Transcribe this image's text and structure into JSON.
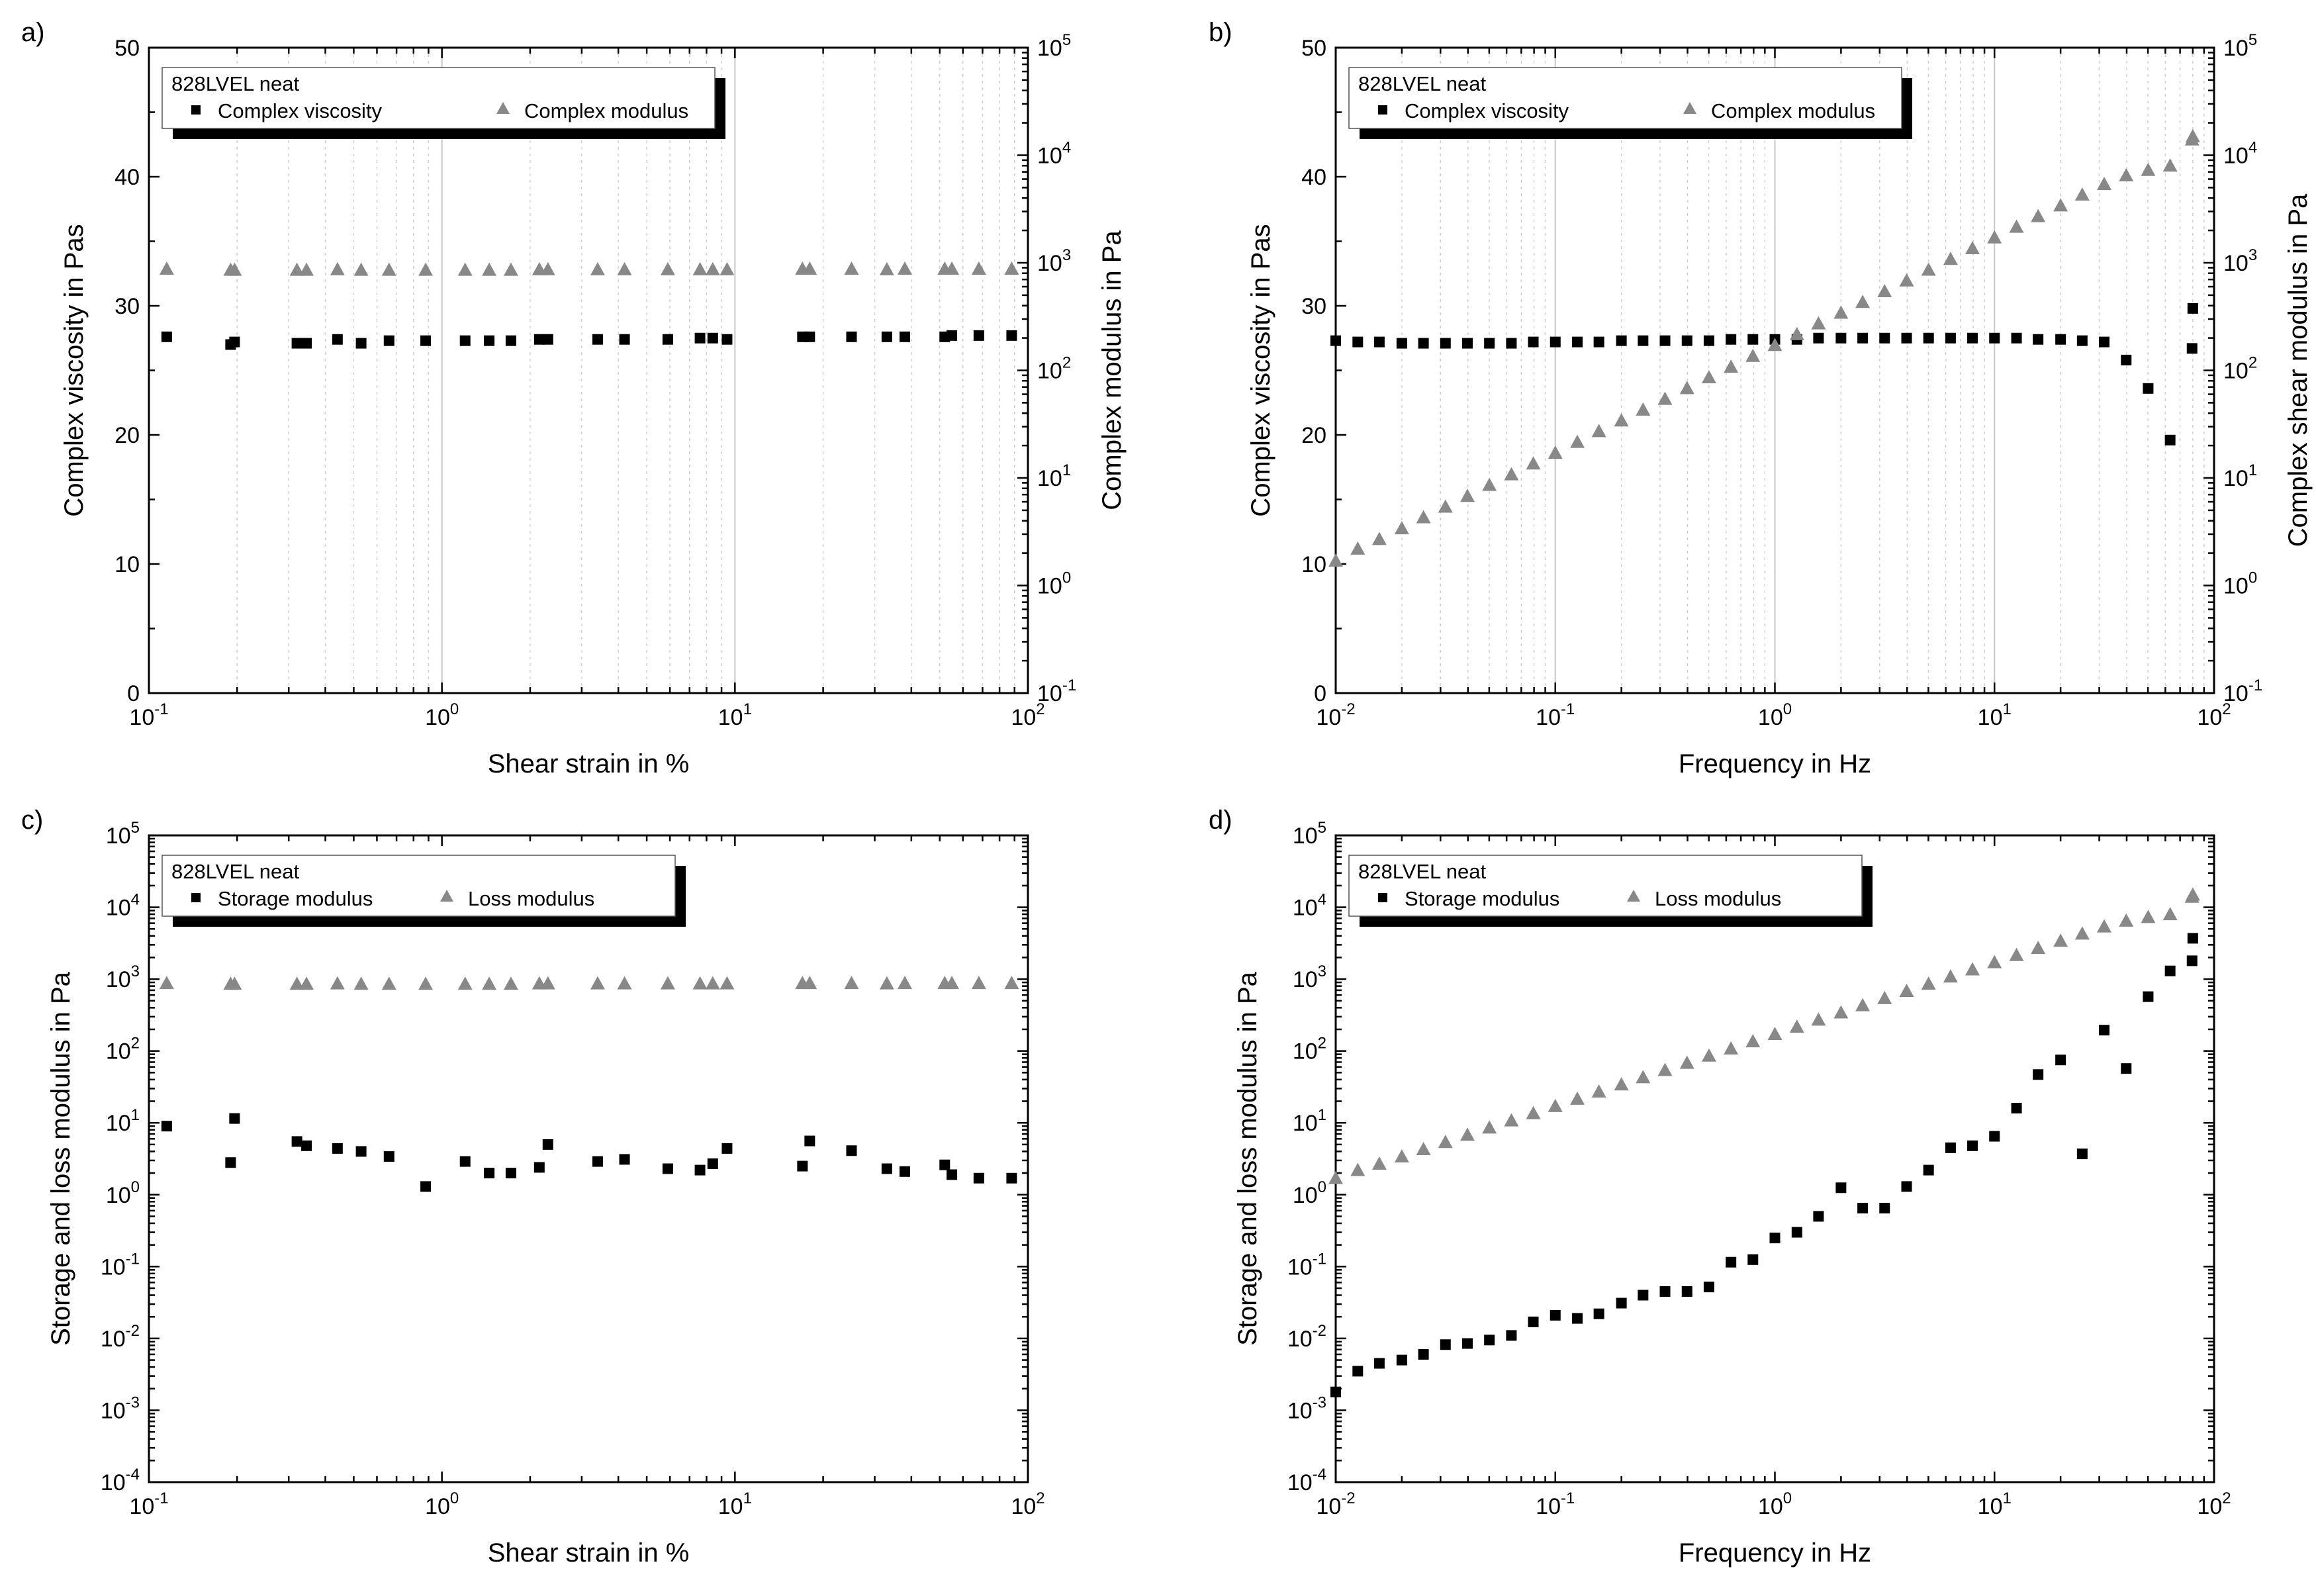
{
  "chart_data": [
    {
      "panel_label": "a)",
      "type": "scatter",
      "xlabel": "Shear strain in %",
      "ylabel_left": "Complex viscosity in Pas",
      "ylabel_right": "Complex modulus in Pa",
      "xscale": "log",
      "xlim": [
        0.1,
        100
      ],
      "ylim_left": [
        0,
        50
      ],
      "yticks_left": [
        0,
        10,
        20,
        30,
        40,
        50
      ],
      "yscale_right": "log",
      "ylim_right": [
        0.1,
        100000
      ],
      "grid": "vertical dotted minor + solid major",
      "legend": {
        "title": "828LVEL neat",
        "placement": "top-left"
      },
      "series": [
        {
          "name": "Complex viscosity",
          "marker": "square",
          "color": "#000000",
          "axis": "left",
          "x": [
            0.115,
            0.19,
            0.196,
            0.32,
            0.345,
            0.44,
            0.53,
            0.66,
            0.88,
            1.2,
            1.45,
            1.72,
            2.15,
            2.3,
            3.4,
            4.2,
            5.9,
            7.6,
            8.4,
            9.4,
            17,
            18,
            25,
            33,
            38,
            52,
            55,
            68,
            88
          ],
          "values": [
            27.6,
            27.0,
            27.2,
            27.1,
            27.1,
            27.4,
            27.1,
            27.3,
            27.3,
            27.3,
            27.3,
            27.3,
            27.4,
            27.4,
            27.4,
            27.4,
            27.4,
            27.5,
            27.5,
            27.4,
            27.6,
            27.6,
            27.6,
            27.6,
            27.6,
            27.6,
            27.7,
            27.7,
            27.7
          ]
        },
        {
          "name": "Complex modulus",
          "marker": "triangle",
          "color": "#888888",
          "axis": "right",
          "x": [
            0.115,
            0.19,
            0.196,
            0.32,
            0.345,
            0.44,
            0.53,
            0.66,
            0.88,
            1.2,
            1.45,
            1.72,
            2.15,
            2.3,
            3.4,
            4.2,
            5.9,
            7.6,
            8.4,
            9.4,
            17,
            18,
            25,
            33,
            38,
            52,
            55,
            68,
            88
          ],
          "values": [
            880,
            860,
            860,
            860,
            860,
            870,
            860,
            860,
            860,
            860,
            860,
            860,
            870,
            870,
            870,
            870,
            870,
            870,
            870,
            870,
            880,
            880,
            880,
            870,
            880,
            880,
            880,
            880,
            880
          ]
        }
      ]
    },
    {
      "panel_label": "b)",
      "type": "scatter",
      "xlabel": "Frequency in Hz",
      "ylabel_left": "Complex viscosity in Pas",
      "ylabel_right": "Complex shear modulus in Pa",
      "xscale": "log",
      "xlim": [
        0.01,
        100
      ],
      "ylim_left": [
        0,
        50
      ],
      "yticks_left": [
        0,
        10,
        20,
        30,
        40,
        50
      ],
      "yscale_right": "log",
      "ylim_right": [
        0.1,
        100000
      ],
      "grid": "vertical dotted minor + solid major",
      "legend": {
        "title": "828LVEL neat",
        "placement": "top-left"
      },
      "series": [
        {
          "name": "Complex viscosity",
          "marker": "square",
          "color": "#000000",
          "axis": "left",
          "x": [
            0.01,
            0.0126,
            0.0158,
            0.02,
            0.0251,
            0.0316,
            0.0398,
            0.0501,
            0.0631,
            0.0794,
            0.1,
            0.126,
            0.158,
            0.2,
            0.251,
            0.316,
            0.398,
            0.501,
            0.631,
            0.794,
            1.0,
            1.26,
            1.58,
            2.0,
            2.51,
            3.16,
            3.98,
            5.01,
            6.31,
            7.94,
            10,
            12.6,
            15.8,
            20,
            25.1,
            31.6,
            39.8,
            50.1,
            63.1,
            79.4,
            80
          ],
          "values": [
            27.3,
            27.2,
            27.2,
            27.1,
            27.1,
            27.1,
            27.1,
            27.1,
            27.1,
            27.2,
            27.2,
            27.2,
            27.2,
            27.3,
            27.3,
            27.3,
            27.3,
            27.3,
            27.4,
            27.4,
            27.4,
            27.4,
            27.5,
            27.5,
            27.5,
            27.5,
            27.5,
            27.5,
            27.5,
            27.5,
            27.5,
            27.5,
            27.4,
            27.4,
            27.3,
            27.2,
            25.8,
            23.6,
            19.6,
            26.7,
            29.8
          ]
        },
        {
          "name": "Complex modulus",
          "marker": "triangle",
          "color": "#888888",
          "axis": "right",
          "x": [
            0.01,
            0.0126,
            0.0158,
            0.02,
            0.0251,
            0.0316,
            0.0398,
            0.0501,
            0.0631,
            0.0794,
            0.1,
            0.126,
            0.158,
            0.2,
            0.251,
            0.316,
            0.398,
            0.501,
            0.631,
            0.794,
            1.0,
            1.26,
            1.58,
            2.0,
            2.51,
            3.16,
            3.98,
            5.01,
            6.31,
            7.94,
            10,
            12.6,
            15.8,
            20,
            25.1,
            31.6,
            39.8,
            50.1,
            63.1,
            79.4,
            80
          ],
          "values": [
            1.7,
            2.2,
            2.7,
            3.4,
            4.3,
            5.4,
            6.8,
            8.6,
            10.8,
            13.6,
            17.1,
            21.6,
            27.2,
            34.2,
            43.1,
            54.3,
            68.3,
            86.1,
            108,
            136,
            172,
            217,
            273,
            343,
            432,
            544,
            684,
            861,
            1084,
            1365,
            1718,
            2160,
            2710,
            3410,
            4300,
            5400,
            6500,
            7300,
            8000,
            14000,
            15000
          ]
        }
      ]
    },
    {
      "panel_label": "c)",
      "type": "scatter",
      "xlabel": "Shear strain in %",
      "ylabel": "Storage and loss modulus in Pa",
      "xscale": "log",
      "xlim": [
        0.1,
        100
      ],
      "yscale": "log",
      "ylim": [
        0.0001,
        100000
      ],
      "legend": {
        "title": "828LVEL neat",
        "placement": "top-left"
      },
      "series": [
        {
          "name": "Storage modulus",
          "marker": "square",
          "color": "#000000",
          "x": [
            0.115,
            0.19,
            0.196,
            0.32,
            0.345,
            0.44,
            0.53,
            0.66,
            0.88,
            1.2,
            1.45,
            1.72,
            2.15,
            2.3,
            3.4,
            4.2,
            5.9,
            7.6,
            8.4,
            9.4,
            17,
            18,
            25,
            33,
            38,
            52,
            55,
            68,
            88
          ],
          "values": [
            9.0,
            2.8,
            11.5,
            5.5,
            4.8,
            4.4,
            4.0,
            3.4,
            1.3,
            2.9,
            2.0,
            2.0,
            2.4,
            5.0,
            2.9,
            3.1,
            2.3,
            2.2,
            2.7,
            4.4,
            2.5,
            5.6,
            4.1,
            2.3,
            2.1,
            2.6,
            1.9,
            1.7,
            1.7
          ]
        },
        {
          "name": "Loss modulus",
          "marker": "triangle",
          "color": "#888888",
          "x": [
            0.115,
            0.19,
            0.196,
            0.32,
            0.345,
            0.44,
            0.53,
            0.66,
            0.88,
            1.2,
            1.45,
            1.72,
            2.15,
            2.3,
            3.4,
            4.2,
            5.9,
            7.6,
            8.4,
            9.4,
            17,
            18,
            25,
            33,
            38,
            52,
            55,
            68,
            88
          ],
          "values": [
            880,
            860,
            860,
            860,
            860,
            870,
            860,
            860,
            860,
            860,
            860,
            860,
            870,
            870,
            870,
            870,
            870,
            870,
            870,
            870,
            880,
            880,
            880,
            870,
            880,
            880,
            880,
            880,
            880
          ]
        }
      ]
    },
    {
      "panel_label": "d)",
      "type": "scatter",
      "xlabel": "Frequency in Hz",
      "ylabel": "Storage and loss modulus in Pa",
      "xscale": "log",
      "xlim": [
        0.01,
        100
      ],
      "yscale": "log",
      "ylim": [
        0.0001,
        100000
      ],
      "legend": {
        "title": "828LVEL neat",
        "placement": "top-left"
      },
      "series": [
        {
          "name": "Storage modulus",
          "marker": "square",
          "color": "#000000",
          "x": [
            0.01,
            0.0126,
            0.0158,
            0.02,
            0.0251,
            0.0316,
            0.0398,
            0.0501,
            0.0631,
            0.0794,
            0.1,
            0.126,
            0.158,
            0.2,
            0.251,
            0.316,
            0.398,
            0.501,
            0.631,
            0.794,
            1.0,
            1.26,
            1.58,
            2.0,
            2.51,
            3.16,
            3.98,
            5.01,
            6.31,
            7.94,
            10,
            12.6,
            15.8,
            20,
            25.1,
            31.6,
            39.8,
            50.1,
            63.1,
            79.4,
            80
          ],
          "values": [
            0.0018,
            0.0035,
            0.0045,
            0.005,
            0.006,
            0.0082,
            0.0085,
            0.0095,
            0.011,
            0.017,
            0.021,
            0.019,
            0.022,
            0.031,
            0.04,
            0.045,
            0.045,
            0.052,
            0.115,
            0.125,
            0.25,
            0.3,
            0.5,
            1.25,
            0.65,
            0.65,
            1.3,
            2.2,
            4.5,
            4.8,
            6.5,
            16,
            47,
            75,
            3.7,
            195,
            57,
            570,
            1300,
            1800,
            3700
          ]
        },
        {
          "name": "Loss modulus",
          "marker": "triangle",
          "color": "#888888",
          "x": [
            0.01,
            0.0126,
            0.0158,
            0.02,
            0.0251,
            0.0316,
            0.0398,
            0.0501,
            0.0631,
            0.0794,
            0.1,
            0.126,
            0.158,
            0.2,
            0.251,
            0.316,
            0.398,
            0.501,
            0.631,
            0.794,
            1.0,
            1.26,
            1.58,
            2.0,
            2.51,
            3.16,
            3.98,
            5.01,
            6.31,
            7.94,
            10,
            12.6,
            15.8,
            20,
            25.1,
            31.6,
            39.8,
            50.1,
            63.1,
            79.4,
            80
          ],
          "values": [
            1.7,
            2.2,
            2.7,
            3.4,
            4.3,
            5.4,
            6.8,
            8.6,
            10.8,
            13.6,
            17.1,
            21.6,
            27.2,
            34.2,
            43.1,
            54.3,
            68.3,
            86.1,
            108,
            136,
            172,
            217,
            273,
            343,
            432,
            544,
            684,
            861,
            1084,
            1365,
            1718,
            2160,
            2710,
            3410,
            4300,
            5400,
            6500,
            7300,
            8000,
            14000,
            15000
          ]
        }
      ]
    }
  ]
}
